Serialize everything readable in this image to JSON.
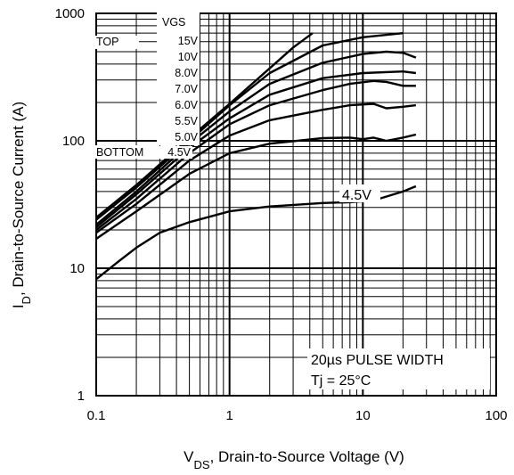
{
  "chart_data": {
    "type": "line",
    "x_scale": "log",
    "y_scale": "log",
    "xlim": [
      0.1,
      100
    ],
    "ylim": [
      1,
      1000
    ],
    "x_ticks": [
      "0.1",
      "1",
      "10",
      "100"
    ],
    "y_ticks": [
      "1",
      "10",
      "100",
      "1000"
    ],
    "xlabel": {
      "main": "V",
      "sub": "DS",
      "rest": ", Drain-to-Source Voltage (V)"
    },
    "ylabel": {
      "main": "I",
      "sub": "D",
      "rest": ", Drain-to-Source Current (A)"
    },
    "grid": true,
    "legend": {
      "header": "VGS",
      "top_label": "TOP",
      "bottom_label": "BOTTOM",
      "items": [
        "15V",
        "10V",
        "8.0V",
        "7.0V",
        "6.0V",
        "5.5V",
        "5.0V",
        "4.5V"
      ]
    },
    "annotation": "4.5V",
    "note": {
      "line1": "20µs PULSE WIDTH",
      "line2": "Tj = 25°C"
    },
    "series": [
      {
        "x": [
          0.1,
          0.2,
          0.5,
          1,
          2,
          3,
          4.2
        ],
        "y": [
          25,
          45,
          105,
          195,
          370,
          540,
          700
        ]
      },
      {
        "x": [
          0.1,
          0.2,
          0.5,
          1,
          2,
          5,
          10,
          20
        ],
        "y": [
          24,
          43,
          100,
          190,
          340,
          560,
          650,
          700
        ]
      },
      {
        "x": [
          0.1,
          0.2,
          0.5,
          1,
          2,
          5,
          10,
          15,
          20,
          25
        ],
        "y": [
          22,
          40,
          95,
          170,
          280,
          410,
          480,
          500,
          490,
          450
        ]
      },
      {
        "x": [
          0.1,
          0.2,
          0.5,
          1,
          2,
          5,
          10,
          20,
          25
        ],
        "y": [
          21,
          38,
          88,
          150,
          230,
          310,
          340,
          350,
          340
        ]
      },
      {
        "x": [
          0.1,
          0.2,
          0.5,
          1,
          2,
          5,
          8,
          12,
          15,
          20,
          25
        ],
        "y": [
          20,
          35,
          80,
          135,
          190,
          250,
          280,
          295,
          290,
          270,
          270
        ]
      },
      {
        "x": [
          0.1,
          0.2,
          0.5,
          1,
          2,
          5,
          8,
          12,
          15,
          20,
          25
        ],
        "y": [
          19,
          32,
          70,
          110,
          145,
          175,
          190,
          195,
          180,
          185,
          190
        ]
      },
      {
        "x": [
          0.1,
          0.2,
          0.5,
          1,
          2,
          5,
          8,
          10,
          12,
          15,
          20,
          25
        ],
        "y": [
          17,
          28,
          55,
          80,
          95,
          105,
          106,
          103,
          106,
          100,
          106,
          112
        ]
      },
      {
        "x": [
          0.1,
          0.15,
          0.2,
          0.3,
          0.5,
          1,
          2,
          5,
          8,
          12,
          20,
          25
        ],
        "y": [
          8.2,
          11.5,
          14.5,
          19,
          23,
          28,
          30.5,
          32.5,
          33,
          34,
          40,
          44
        ]
      }
    ]
  }
}
